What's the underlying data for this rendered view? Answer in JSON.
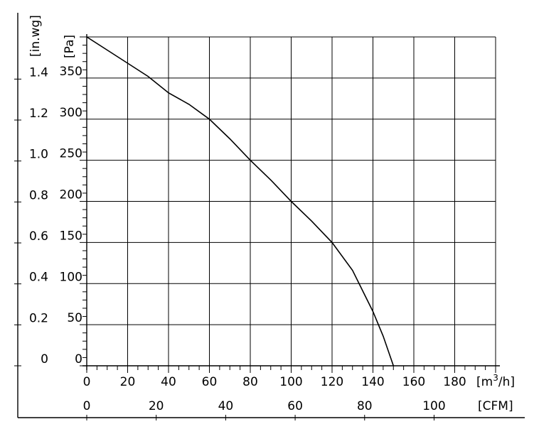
{
  "chart_data": {
    "type": "line",
    "title": "",
    "x_primary": {
      "unit_base": "[m",
      "unit_sup": "3",
      "unit_tail": "/h]",
      "ticks": [
        "0",
        "20",
        "40",
        "60",
        "80",
        "100",
        "120",
        "140",
        "160",
        "180"
      ],
      "range": [
        0,
        200
      ]
    },
    "x_secondary": {
      "unit": "[CFM]",
      "ticks": [
        "0",
        "20",
        "40",
        "60",
        "80",
        "100"
      ]
    },
    "y_primary": {
      "unit": "[Pa]",
      "ticks": [
        "0",
        "50",
        "100",
        "150",
        "200",
        "250",
        "300",
        "350"
      ],
      "range": [
        0,
        400
      ]
    },
    "y_secondary": {
      "unit": "[in.wg]",
      "ticks": [
        "0",
        "0.2",
        "0.4",
        "0.6",
        "0.8",
        "1.0",
        "1.2",
        "1.4"
      ]
    },
    "grid": true,
    "series": [
      {
        "x": [
          0,
          10,
          20,
          30,
          40,
          50,
          60,
          70,
          80,
          90,
          100,
          110,
          120,
          130,
          140,
          145,
          150
        ],
        "y": [
          400,
          384,
          368,
          352,
          332,
          318,
          300,
          276,
          250,
          226,
          200,
          176,
          150,
          116,
          66,
          36,
          0
        ]
      }
    ],
    "colors": {
      "line": "#000000",
      "grid": "#000000"
    }
  }
}
